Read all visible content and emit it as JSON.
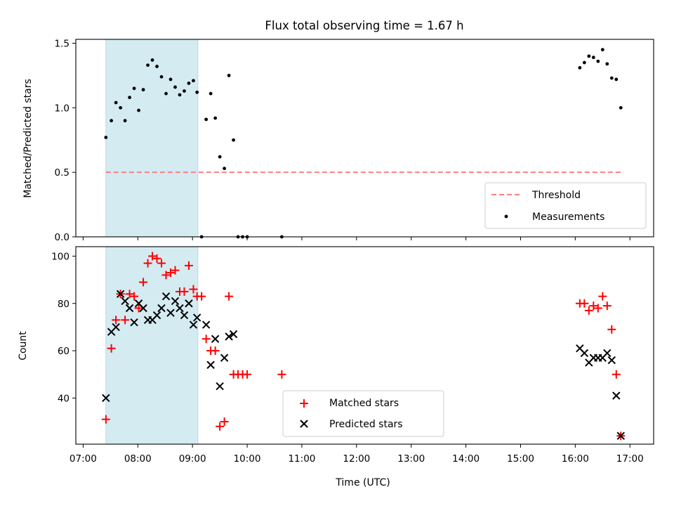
{
  "chart_data": [
    {
      "type": "scatter",
      "title": "Flux total observing time = 1.67 h",
      "ylabel": "Matched/Predicted stars",
      "xlim": [
        "06:52",
        "17:26"
      ],
      "ylim": [
        0,
        1.53
      ],
      "yticks": [
        "0.0",
        "0.5",
        "1.0",
        "1.5"
      ],
      "shaded_interval": {
        "start": "07:25",
        "end": "09:06",
        "color": "#add8e6"
      },
      "threshold": {
        "name": "Threshold",
        "value": 0.5,
        "x_start": "07:25",
        "x_end": "16:50",
        "color": "#ff7f7f",
        "style": "dashed"
      },
      "series": [
        {
          "name": "Measurements",
          "marker": "dot",
          "color": "#000000",
          "points": [
            [
              "07:25",
              0.77
            ],
            [
              "07:31",
              0.9
            ],
            [
              "07:36",
              1.04
            ],
            [
              "07:41",
              1.0
            ],
            [
              "07:46",
              0.9
            ],
            [
              "07:51",
              1.08
            ],
            [
              "07:56",
              1.15
            ],
            [
              "08:01",
              0.98
            ],
            [
              "08:06",
              1.14
            ],
            [
              "08:11",
              1.33
            ],
            [
              "08:16",
              1.37
            ],
            [
              "08:21",
              1.32
            ],
            [
              "08:26",
              1.24
            ],
            [
              "08:31",
              1.11
            ],
            [
              "08:36",
              1.22
            ],
            [
              "08:41",
              1.16
            ],
            [
              "08:46",
              1.1
            ],
            [
              "08:51",
              1.13
            ],
            [
              "08:56",
              1.19
            ],
            [
              "09:01",
              1.21
            ],
            [
              "09:05",
              1.12
            ],
            [
              "09:10",
              0.0
            ],
            [
              "09:15",
              0.91
            ],
            [
              "09:20",
              1.11
            ],
            [
              "09:25",
              0.92
            ],
            [
              "09:30",
              0.62
            ],
            [
              "09:35",
              0.53
            ],
            [
              "09:40",
              1.25
            ],
            [
              "09:45",
              0.75
            ],
            [
              "09:50",
              0.0
            ],
            [
              "09:55",
              0.0
            ],
            [
              "10:00",
              0.0
            ],
            [
              "10:38",
              0.0
            ],
            [
              "16:05",
              1.31
            ],
            [
              "16:10",
              1.35
            ],
            [
              "16:15",
              1.4
            ],
            [
              "16:20",
              1.39
            ],
            [
              "16:25",
              1.36
            ],
            [
              "16:30",
              1.45
            ],
            [
              "16:35",
              1.34
            ],
            [
              "16:40",
              1.23
            ],
            [
              "16:45",
              1.22
            ],
            [
              "16:50",
              1.0
            ]
          ]
        }
      ],
      "legend": {
        "position": "lower-right",
        "entries": [
          "Threshold",
          "Measurements"
        ]
      }
    },
    {
      "type": "scatter",
      "xlabel": "Time (UTC)",
      "ylabel": "Count",
      "xlim": [
        "06:52",
        "17:26"
      ],
      "ylim": [
        20.5,
        104
      ],
      "yticks": [
        "40",
        "60",
        "80",
        "100"
      ],
      "xticks": [
        "07:00",
        "08:00",
        "09:00",
        "10:00",
        "11:00",
        "12:00",
        "13:00",
        "14:00",
        "15:00",
        "16:00",
        "17:00"
      ],
      "shaded_interval": {
        "start": "07:25",
        "end": "09:06",
        "color": "#add8e6"
      },
      "series": [
        {
          "name": "Matched stars",
          "marker": "plus",
          "color": "#ff0000",
          "points": [
            [
              "07:25",
              31
            ],
            [
              "07:31",
              61
            ],
            [
              "07:36",
              73
            ],
            [
              "07:41",
              84
            ],
            [
              "07:46",
              73
            ],
            [
              "07:51",
              84
            ],
            [
              "07:56",
              83
            ],
            [
              "08:01",
              78
            ],
            [
              "08:06",
              89
            ],
            [
              "08:11",
              97
            ],
            [
              "08:16",
              100
            ],
            [
              "08:21",
              99
            ],
            [
              "08:26",
              97
            ],
            [
              "08:31",
              92
            ],
            [
              "08:36",
              93
            ],
            [
              "08:41",
              94
            ],
            [
              "08:46",
              85
            ],
            [
              "08:51",
              85
            ],
            [
              "08:56",
              96
            ],
            [
              "09:01",
              86
            ],
            [
              "09:05",
              83
            ],
            [
              "09:10",
              83
            ],
            [
              "09:15",
              65
            ],
            [
              "09:20",
              60
            ],
            [
              "09:25",
              60
            ],
            [
              "09:30",
              28
            ],
            [
              "09:35",
              30
            ],
            [
              "09:40",
              83
            ],
            [
              "09:45",
              50
            ],
            [
              "09:50",
              50
            ],
            [
              "09:55",
              50
            ],
            [
              "10:00",
              50
            ],
            [
              "10:38",
              50
            ],
            [
              "16:05",
              80
            ],
            [
              "16:10",
              80
            ],
            [
              "16:15",
              77
            ],
            [
              "16:20",
              79
            ],
            [
              "16:25",
              78
            ],
            [
              "16:30",
              83
            ],
            [
              "16:35",
              79
            ],
            [
              "16:40",
              69
            ],
            [
              "16:45",
              50
            ],
            [
              "16:50",
              24
            ]
          ]
        },
        {
          "name": "Predicted stars",
          "marker": "x",
          "color": "#000000",
          "points": [
            [
              "07:25",
              40
            ],
            [
              "07:31",
              68
            ],
            [
              "07:36",
              70
            ],
            [
              "07:41",
              84
            ],
            [
              "07:46",
              81
            ],
            [
              "07:51",
              78
            ],
            [
              "07:56",
              72
            ],
            [
              "08:01",
              80
            ],
            [
              "08:06",
              78
            ],
            [
              "08:11",
              73
            ],
            [
              "08:16",
              73
            ],
            [
              "08:21",
              75
            ],
            [
              "08:26",
              78
            ],
            [
              "08:31",
              83
            ],
            [
              "08:36",
              76
            ],
            [
              "08:41",
              81
            ],
            [
              "08:46",
              78
            ],
            [
              "08:51",
              75
            ],
            [
              "08:56",
              80
            ],
            [
              "09:01",
              71
            ],
            [
              "09:05",
              74
            ],
            [
              "09:15",
              71
            ],
            [
              "09:20",
              54
            ],
            [
              "09:25",
              65
            ],
            [
              "09:30",
              45
            ],
            [
              "09:35",
              57
            ],
            [
              "09:40",
              66
            ],
            [
              "09:45",
              67
            ],
            [
              "16:05",
              61
            ],
            [
              "16:10",
              59
            ],
            [
              "16:15",
              55
            ],
            [
              "16:20",
              57
            ],
            [
              "16:25",
              57
            ],
            [
              "16:30",
              57
            ],
            [
              "16:35",
              59
            ],
            [
              "16:40",
              56
            ],
            [
              "16:45",
              41
            ],
            [
              "16:50",
              24
            ]
          ]
        }
      ],
      "legend": {
        "position": "lower-center",
        "entries": [
          "Matched stars",
          "Predicted stars"
        ]
      }
    }
  ]
}
